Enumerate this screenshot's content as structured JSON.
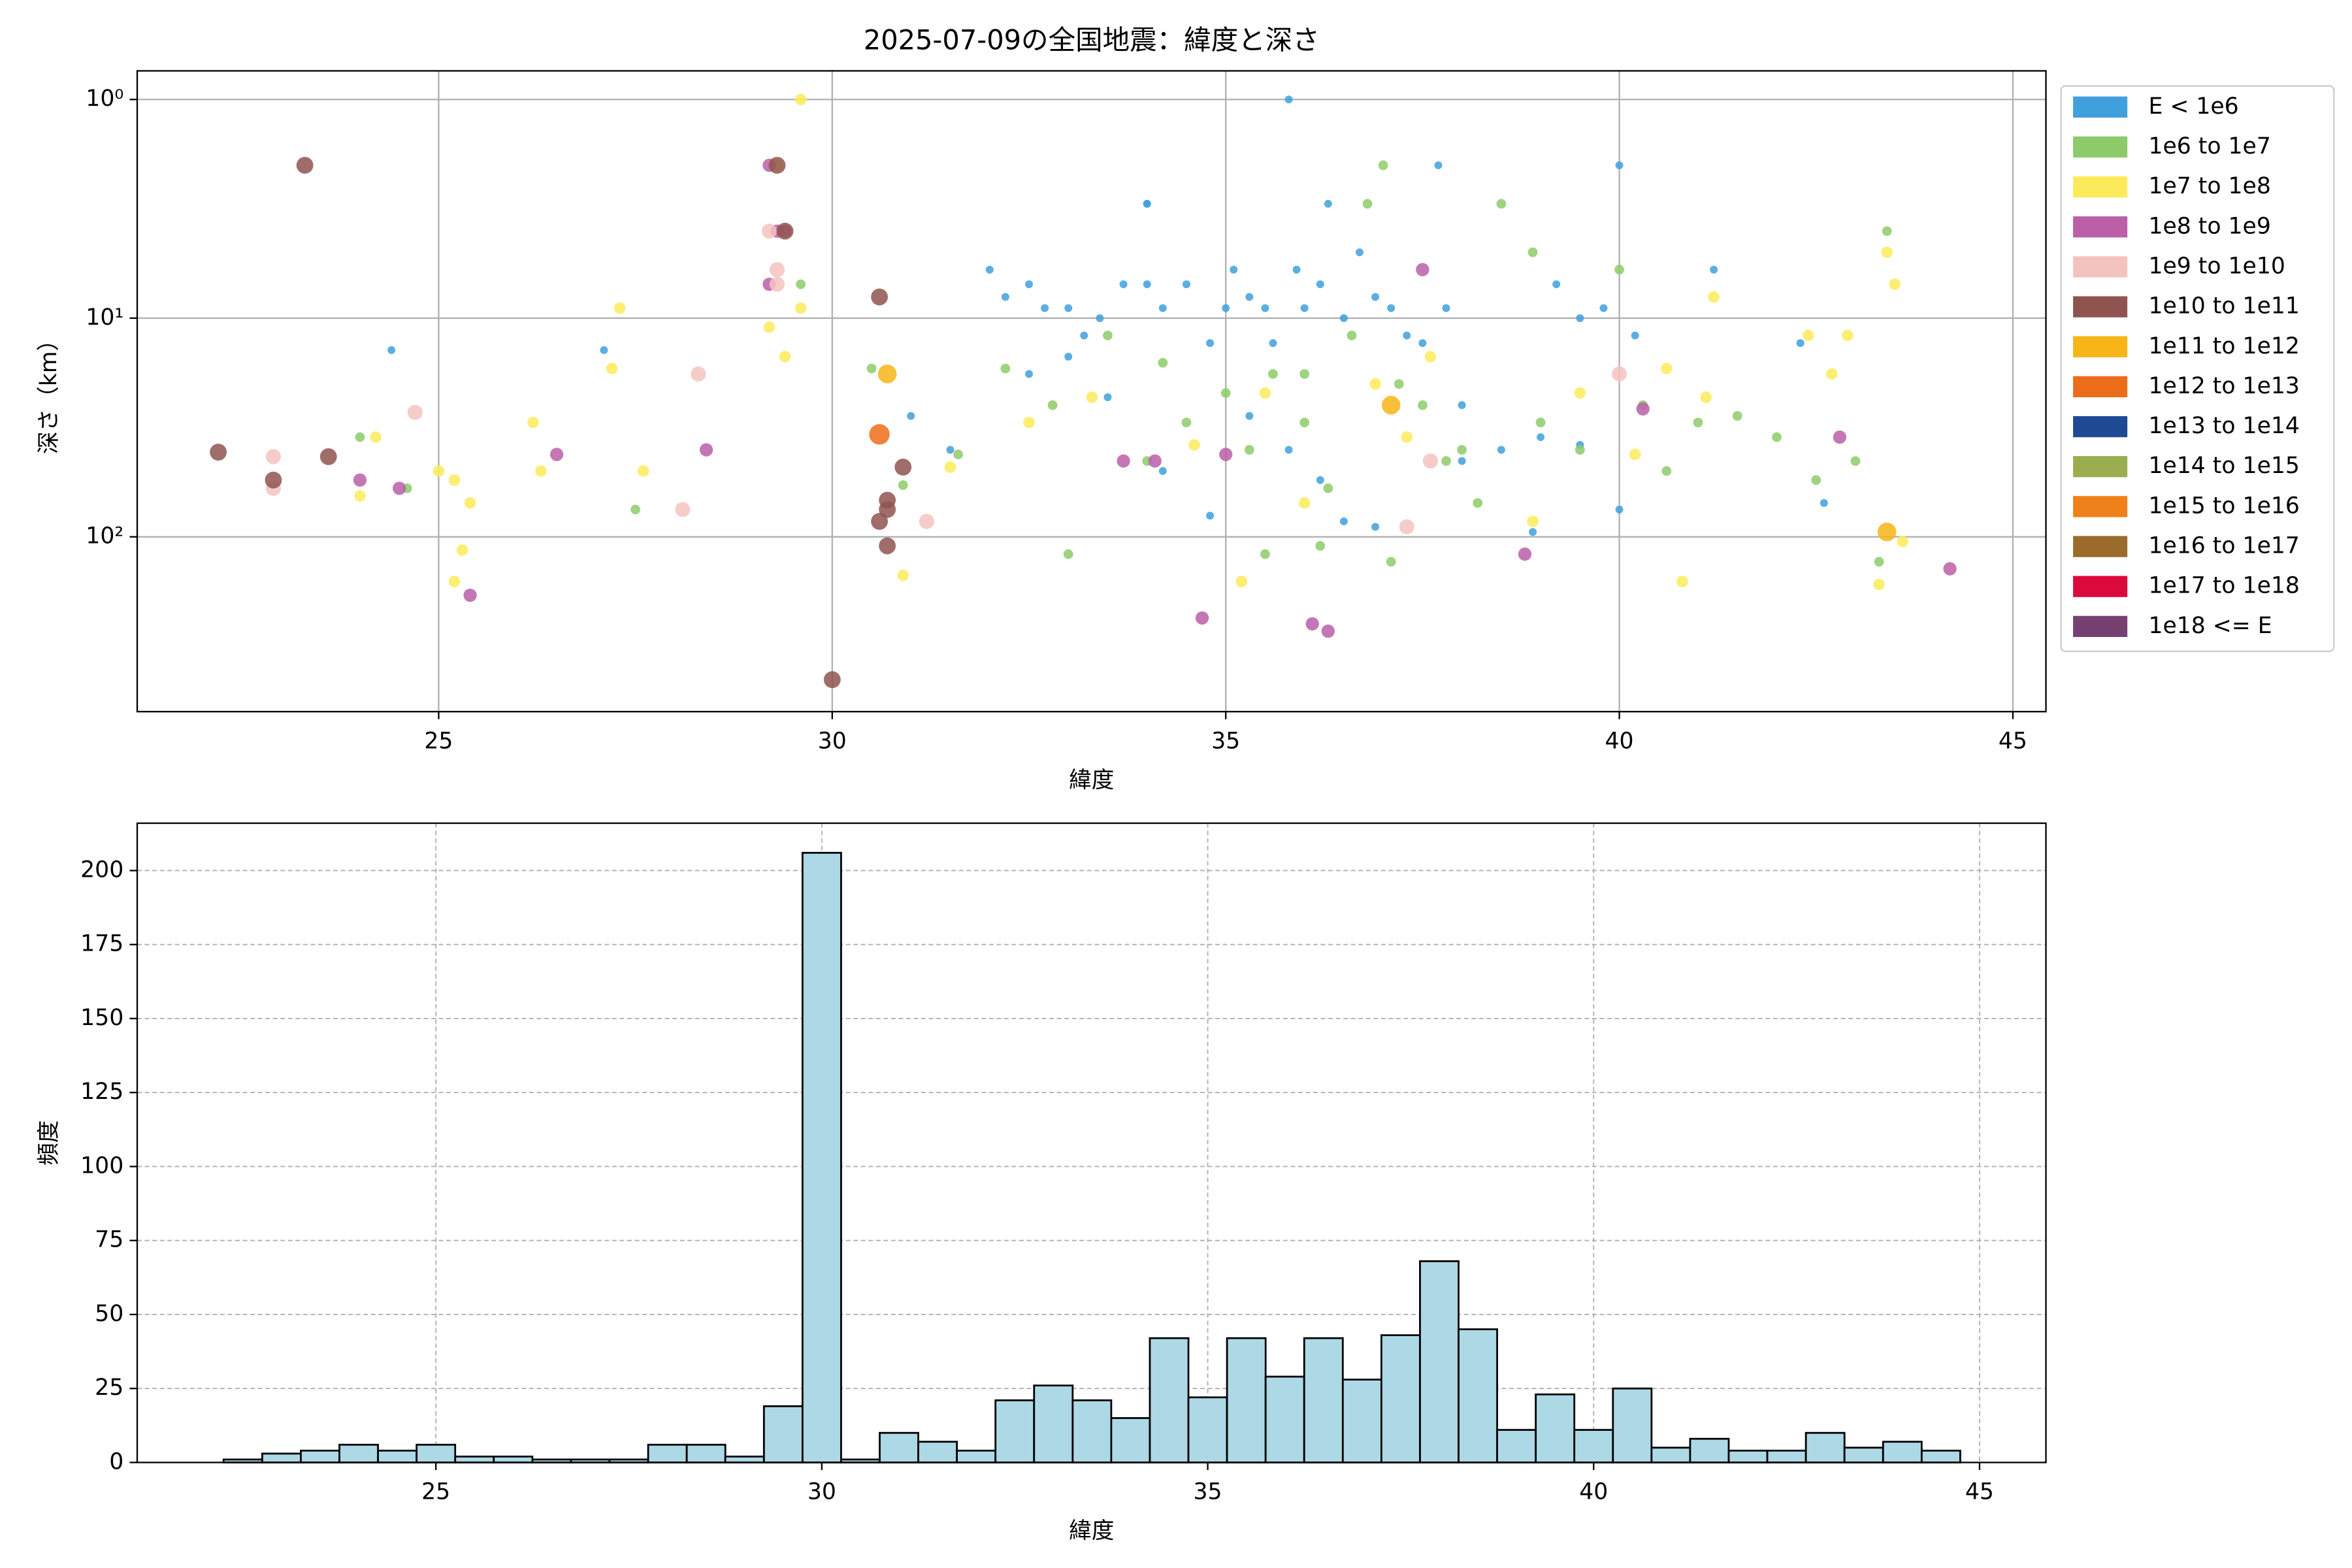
{
  "chart_data": [
    {
      "type": "scatter",
      "title": "2025-07-09の全国地震：緯度と深さ",
      "x_label": "緯度",
      "y_label": "深さ（km）",
      "yscale": "log",
      "y_inverted": true,
      "grid": true,
      "legend": "outside right",
      "xlim": [
        21.17,
        45.42
      ],
      "xticks": [
        25,
        30,
        35,
        40,
        45
      ],
      "ylim": [
        0.74,
        630
      ],
      "yticks": [
        {
          "value": 1,
          "label": "10⁰"
        },
        {
          "value": 10,
          "label": "10¹"
        },
        {
          "value": 100,
          "label": "10²"
        }
      ],
      "series": [
        {
          "name": "E < 1e6",
          "color": "#3fa0dc",
          "x": [
            32.0,
            32.2,
            32.5,
            32.7,
            33.0,
            33.2,
            33.4,
            33.7,
            34.0,
            34.0,
            34.2,
            34.5,
            34.8,
            35.0,
            35.1,
            35.3,
            35.5,
            35.8,
            35.9,
            36.0,
            36.2,
            36.3,
            36.5,
            36.7,
            36.9,
            37.1,
            37.3,
            37.5,
            37.7,
            37.8,
            38.0,
            38.5,
            39.0,
            39.2,
            39.5,
            39.8,
            40.0,
            40.0,
            40.2,
            41.2,
            42.3,
            42.6,
            24.4,
            27.1,
            31.0,
            31.5,
            32.5,
            33.0,
            33.5,
            34.2,
            34.8,
            35.3,
            35.8,
            36.2,
            36.5,
            36.9,
            38.0,
            38.9,
            39.5,
            35.6,
            34.0
          ],
          "values": [
            6,
            8,
            7,
            9,
            9,
            12,
            10,
            7,
            3,
            7,
            9,
            7,
            13,
            9,
            6,
            8,
            9,
            1,
            6,
            9,
            7,
            3,
            10,
            5,
            8,
            9,
            12,
            13,
            2,
            9,
            25,
            40,
            35,
            7,
            10,
            9,
            2,
            75,
            12,
            6,
            13,
            70,
            14,
            14,
            28,
            40,
            18,
            15,
            23,
            50,
            80,
            28,
            40,
            55,
            85,
            90,
            45,
            95,
            38,
            13,
            3
          ]
        },
        {
          "name": "1e6 to 1e7",
          "color": "#8dcb6a",
          "x": [
            32.2,
            32.8,
            33.0,
            33.5,
            34.0,
            34.2,
            34.5,
            35.0,
            35.3,
            35.6,
            36.0,
            36.3,
            36.6,
            36.8,
            37.0,
            37.2,
            37.5,
            37.8,
            38.0,
            38.5,
            38.9,
            39.0,
            39.5,
            40.0,
            40.3,
            40.6,
            41.0,
            41.5,
            42.0,
            42.5,
            43.0,
            43.3,
            43.4,
            24.0,
            24.6,
            27.5,
            29.6,
            30.5,
            30.9,
            31.6,
            35.5,
            36.2,
            37.1,
            36.0,
            38.2
          ],
          "values": [
            17,
            25,
            120,
            12,
            45,
            16,
            30,
            22,
            40,
            18,
            30,
            60,
            12,
            3,
            2,
            20,
            25,
            45,
            40,
            3,
            5,
            30,
            40,
            6,
            25,
            50,
            30,
            28,
            35,
            55,
            45,
            130,
            4,
            35,
            60,
            75,
            7,
            17,
            58,
            42,
            120,
            110,
            130,
            18,
            70
          ]
        },
        {
          "name": "1e7 to 1e8",
          "color": "#fbeb5b",
          "x": [
            24.2,
            24.0,
            25.0,
            25.4,
            25.2,
            25.3,
            25.2,
            26.2,
            26.3,
            27.3,
            27.2,
            27.6,
            29.3,
            29.6,
            29.6,
            29.2,
            29.4,
            30.9,
            31.5,
            32.5,
            33.3,
            34.6,
            35.2,
            35.5,
            36.0,
            36.9,
            37.3,
            37.6,
            38.9,
            39.5,
            40.2,
            40.6,
            40.8,
            41.2,
            41.1,
            42.4,
            42.7,
            42.9,
            43.4,
            43.5,
            43.6,
            43.3
          ],
          "values": [
            35,
            65,
            50,
            70,
            55,
            115,
            160,
            30,
            50,
            9,
            17,
            50,
            2,
            1,
            9,
            11,
            15,
            150,
            48,
            30,
            23,
            38,
            160,
            22,
            70,
            20,
            35,
            15,
            85,
            22,
            42,
            17,
            160,
            8,
            23,
            12,
            18,
            12,
            5,
            7,
            105,
            165
          ]
        },
        {
          "name": "1e8 to 1e9",
          "color": "#bb5fa8",
          "x": [
            24.0,
            24.5,
            25.4,
            26.5,
            28.4,
            29.2,
            29.3,
            29.4,
            29.2,
            33.7,
            34.1,
            34.7,
            35.0,
            36.1,
            36.3,
            38.8,
            40.3,
            42.8,
            44.2,
            37.5
          ],
          "values": [
            55,
            60,
            185,
            42,
            40,
            7,
            4,
            4,
            2,
            45,
            45,
            235,
            42,
            250,
            270,
            120,
            26,
            35,
            140,
            6
          ]
        },
        {
          "name": "1e9 to 1e10",
          "color": "#f5c3bf",
          "x": [
            22.9,
            22.9,
            24.7,
            28.1,
            28.3,
            29.2,
            29.3,
            29.3,
            31.2,
            37.3,
            40.0,
            37.6
          ],
          "values": [
            43,
            60,
            27,
            75,
            18,
            4,
            6,
            7,
            85,
            90,
            18,
            45
          ]
        },
        {
          "name": "1e10 to 1e11",
          "color": "#8f5450",
          "x": [
            22.2,
            22.9,
            23.3,
            23.6,
            29.3,
            29.4,
            30.6,
            30.7,
            30.7,
            30.9,
            30.6,
            30.7,
            30.0
          ],
          "values": [
            41,
            55,
            2,
            43,
            2,
            4,
            8,
            75,
            68,
            48,
            85,
            110,
            450
          ]
        },
        {
          "name": "1e11 to 1e12",
          "color": "#f7b517",
          "x": [
            30.7,
            37.1,
            43.4
          ],
          "values": [
            18,
            25,
            95
          ]
        },
        {
          "name": "1e12 to 1e13",
          "color": "#ec6d19",
          "x": [
            30.6
          ],
          "values": [
            34
          ]
        },
        {
          "name": "1e13 to 1e14",
          "color": "#1d4a93",
          "x": [],
          "values": []
        },
        {
          "name": "1e14 to 1e15",
          "color": "#9aae50",
          "x": [],
          "values": []
        },
        {
          "name": "1e15 to 1e16",
          "color": "#f08019",
          "x": [],
          "values": []
        },
        {
          "name": "1e16 to 1e17",
          "color": "#9a6b2a",
          "x": [],
          "values": []
        },
        {
          "name": "1e17 to 1e18",
          "color": "#dc0a3c",
          "x": [],
          "values": []
        },
        {
          "name": "1e18 <= E",
          "color": "#764170",
          "x": [],
          "values": []
        }
      ]
    },
    {
      "type": "histogram",
      "x_label": "緯度",
      "y_label": "頻度",
      "color": "#add8e6",
      "edge_color": "#000000",
      "grid": true,
      "xlim": [
        21.13,
        45.86
      ],
      "xticks": [
        25,
        30,
        35,
        40,
        45
      ],
      "ylim": [
        0,
        216
      ],
      "yticks": [
        0,
        25,
        50,
        75,
        100,
        125,
        150,
        175,
        200
      ],
      "bins": [
        22.25,
        22.75,
        23.25,
        23.75,
        24.25,
        24.75,
        25.25,
        25.75,
        26.25,
        26.75,
        27.25,
        27.75,
        28.25,
        28.75,
        29.25,
        29.75,
        30.25,
        30.75,
        31.25,
        31.75,
        32.25,
        32.75,
        33.25,
        33.75,
        34.25,
        34.75,
        35.25,
        35.75,
        36.25,
        36.75,
        37.25,
        37.75,
        38.25,
        38.75,
        39.25,
        39.75,
        40.25,
        40.75,
        41.25,
        41.75,
        42.25,
        42.75,
        43.25,
        43.75,
        44.25,
        44.75
      ],
      "values": [
        1,
        3,
        4,
        6,
        4,
        6,
        2,
        2,
        1,
        1,
        1,
        6,
        6,
        2,
        19,
        206,
        1,
        10,
        7,
        4,
        21,
        26,
        21,
        15,
        42,
        22,
        42,
        29,
        42,
        28,
        43,
        68,
        45,
        11,
        23,
        11,
        25,
        5,
        8,
        4,
        4,
        10,
        5,
        7,
        4
      ]
    }
  ]
}
